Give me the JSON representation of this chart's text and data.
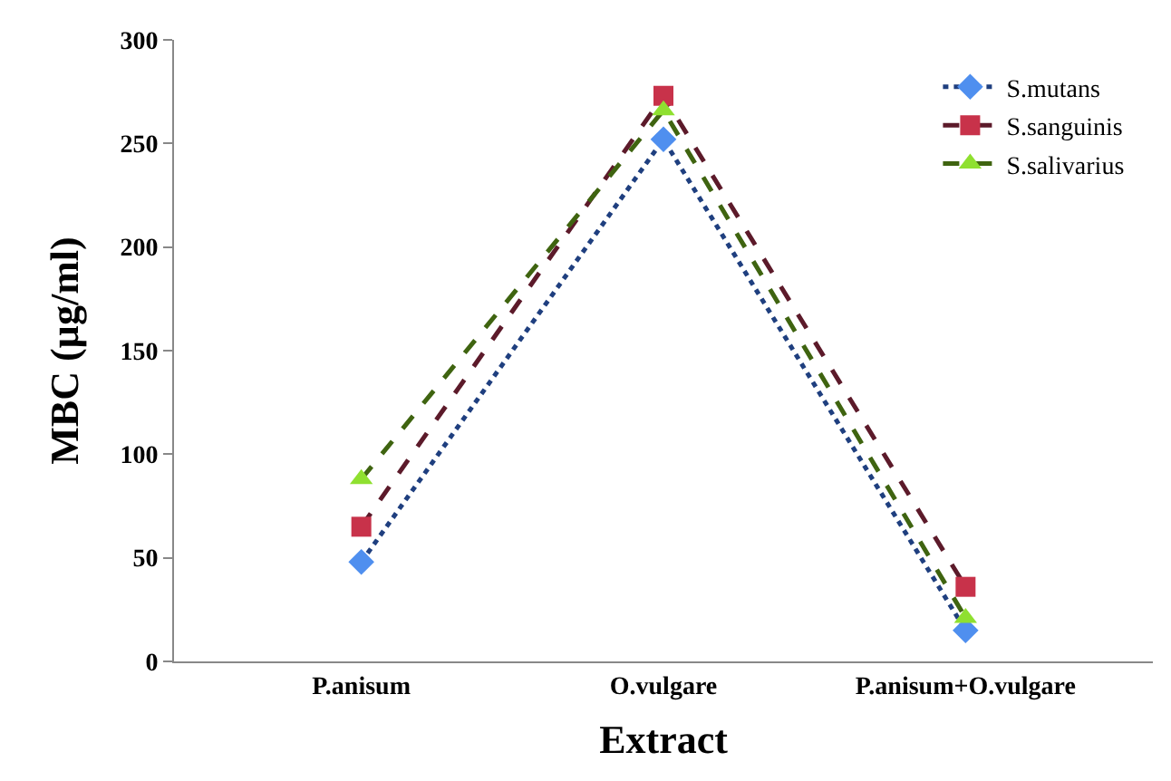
{
  "chart_data": {
    "type": "line",
    "xlabel": "Extract",
    "ylabel": "MBC (µg/ml)",
    "categories": [
      "P.anisum",
      "O.vulgare",
      "P.anisum+O.vulgare"
    ],
    "series": [
      {
        "name": "S.mutans",
        "color": "#1f3f7f",
        "colors": [
          "#4f8fef",
          "#4f8fef",
          "#4f8fef"
        ],
        "marker": "diamond",
        "line_style": "dotted",
        "values": [
          48,
          252,
          15
        ]
      },
      {
        "name": "S.sanguinis",
        "color": "#5c1a2a",
        "colors": [
          "#c8324a",
          "#c8324a",
          "#c8324a"
        ],
        "marker": "square",
        "line_style": "dashed",
        "values": [
          65,
          273,
          36
        ]
      },
      {
        "name": "S.salivarius",
        "color": "#3f6410",
        "colors": [
          "#8fe030",
          "#8fe030",
          "#8fe030"
        ],
        "marker": "triangle",
        "line_style": "dashed",
        "values": [
          88,
          266,
          21
        ]
      }
    ],
    "ylim": [
      0,
      300
    ],
    "yticks": [
      0,
      50,
      100,
      150,
      200,
      250,
      300
    ],
    "grid": false,
    "legend": "top right"
  }
}
